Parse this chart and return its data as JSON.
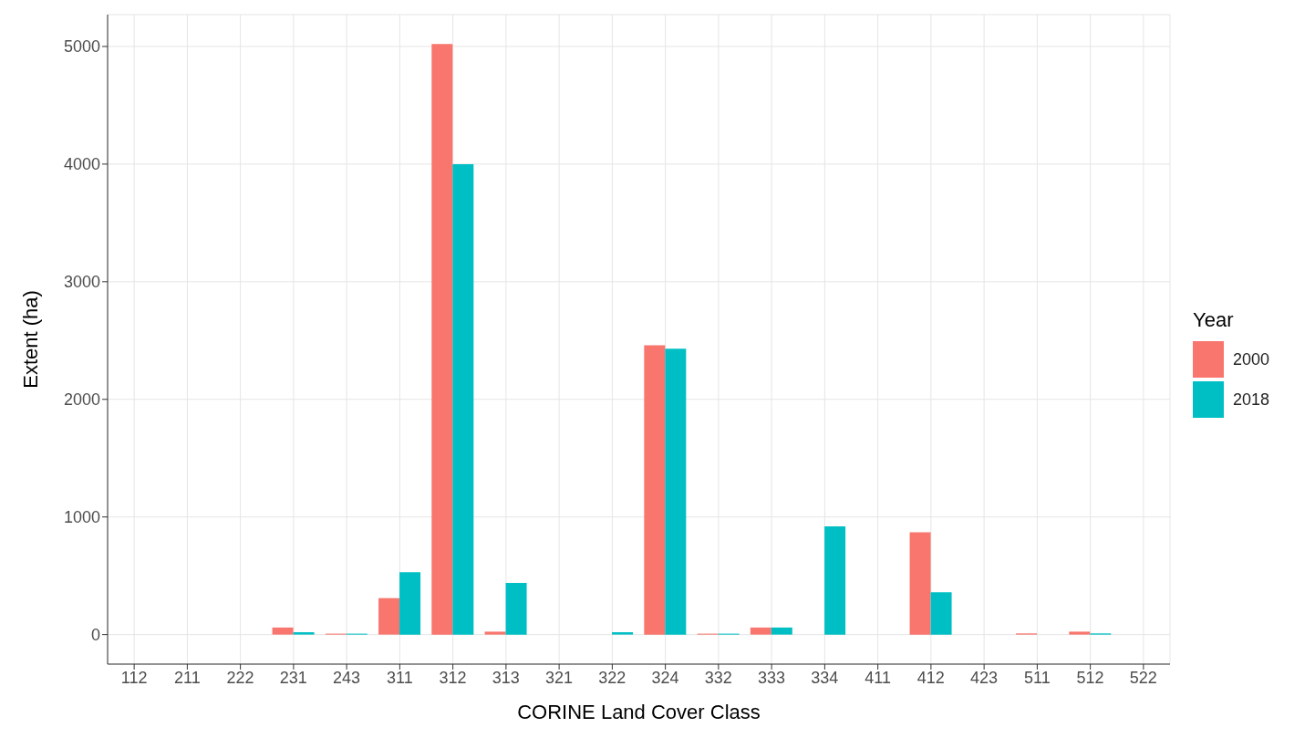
{
  "chart_data": {
    "type": "bar",
    "xlabel": "CORINE Land Cover Class",
    "ylabel": "Extent (ha)",
    "legend_title": "Year",
    "categories": [
      "112",
      "211",
      "222",
      "231",
      "243",
      "311",
      "312",
      "313",
      "321",
      "322",
      "324",
      "332",
      "333",
      "334",
      "411",
      "412",
      "423",
      "511",
      "512",
      "522"
    ],
    "series": [
      {
        "name": "2000",
        "color": "#f8766d",
        "values": [
          null,
          null,
          null,
          60,
          8,
          310,
          5020,
          25,
          null,
          null,
          2460,
          8,
          60,
          null,
          null,
          870,
          null,
          10,
          25,
          null
        ]
      },
      {
        "name": "2018",
        "color": "#00bfc4",
        "values": [
          null,
          null,
          null,
          20,
          8,
          530,
          4000,
          440,
          null,
          20,
          2430,
          8,
          60,
          920,
          null,
          360,
          null,
          null,
          10,
          null
        ]
      }
    ],
    "ylim": [
      -251,
      5271
    ],
    "yticks": [
      0,
      1000,
      2000,
      3000,
      4000,
      5000
    ],
    "grid": true,
    "legend": "right"
  }
}
